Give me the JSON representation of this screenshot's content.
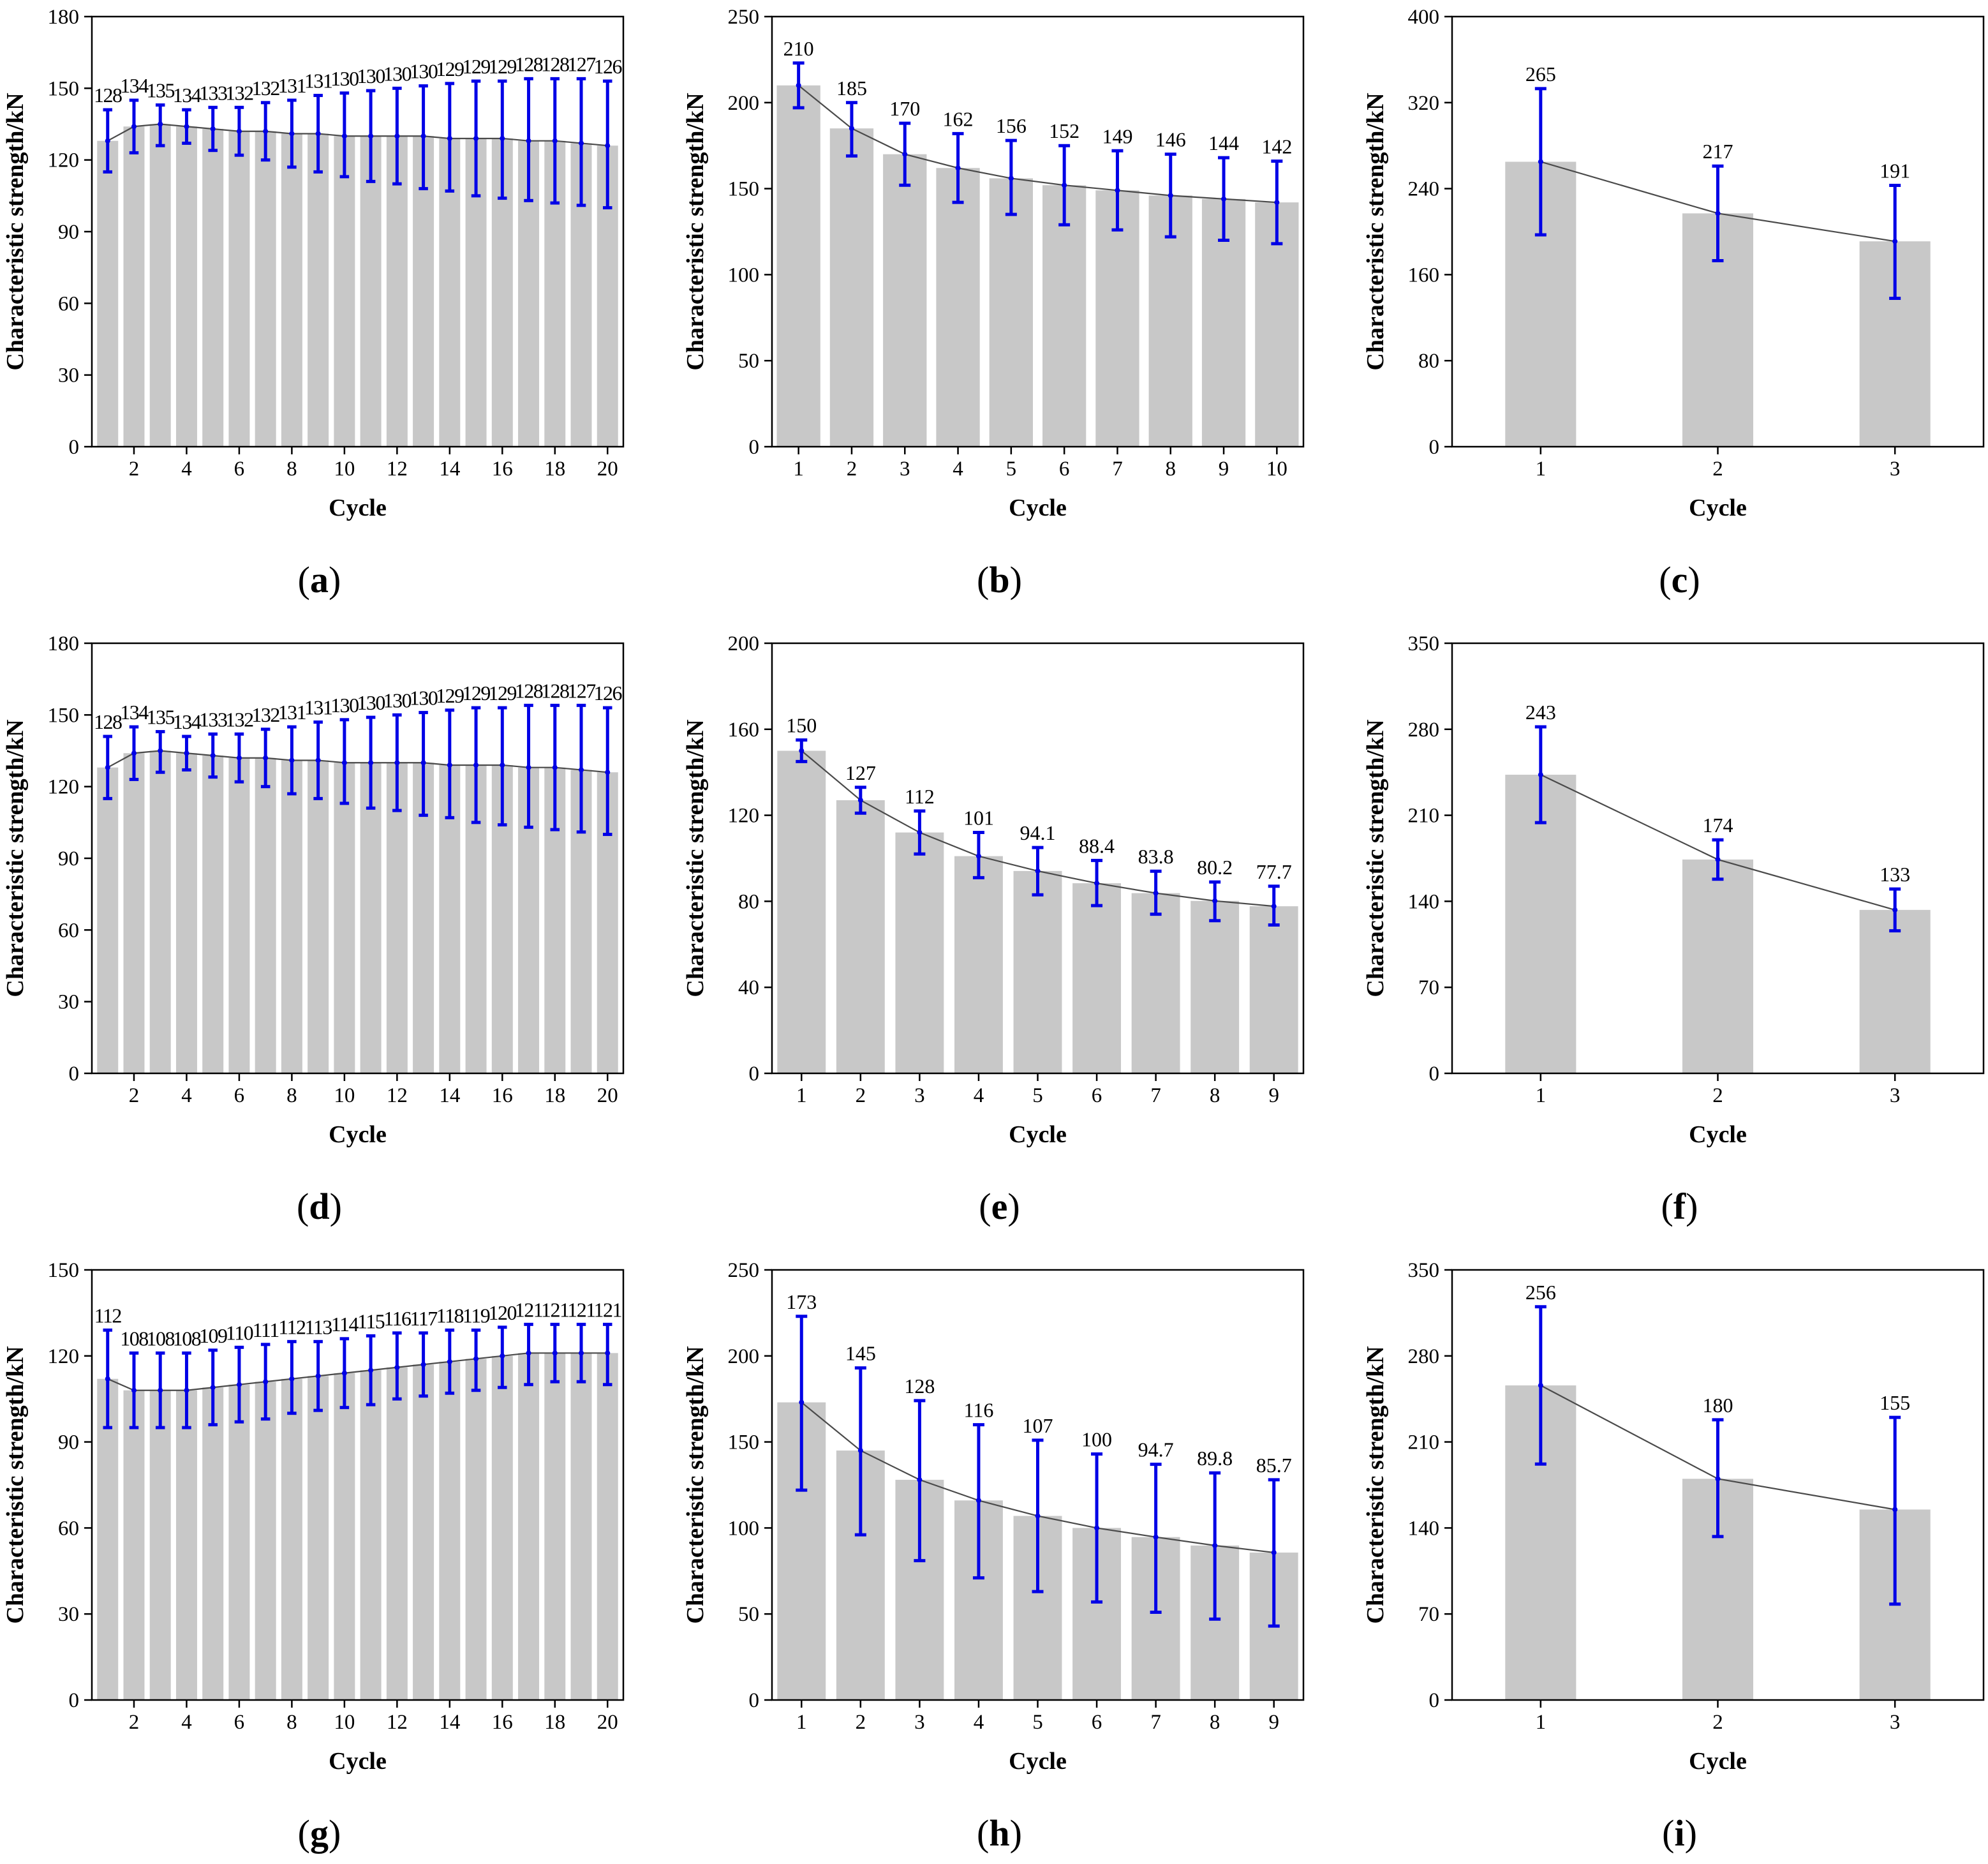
{
  "figure": {
    "colors": {
      "bar": "#c8c8c8",
      "errorbar": "#0000e6",
      "line": "#4a4a4a",
      "axis": "#000000"
    }
  },
  "chart_data": [
    {
      "id": "a",
      "panel_label": "a",
      "type": "bar",
      "xlabel": "Cycle",
      "ylabel": "Characteristic strength/kN",
      "ylim": [
        0,
        180
      ],
      "yticks": [
        0,
        30,
        60,
        90,
        120,
        150,
        180
      ],
      "xlim": [
        0.4,
        20.6
      ],
      "xticks": [
        2,
        4,
        6,
        8,
        10,
        12,
        14,
        16,
        18,
        20
      ],
      "bar_width": 0.8,
      "trend_line": true,
      "x": [
        1,
        2,
        3,
        4,
        5,
        6,
        7,
        8,
        9,
        10,
        11,
        12,
        13,
        14,
        15,
        16,
        17,
        18,
        19,
        20
      ],
      "values": [
        128,
        134,
        135,
        134,
        133,
        132,
        132,
        131,
        131,
        130,
        130,
        130,
        130,
        129,
        129,
        129,
        128,
        128,
        127,
        126
      ],
      "labels": [
        "128",
        "134",
        "135",
        "134",
        "133",
        "132",
        "132",
        "131",
        "131",
        "130",
        "130",
        "130",
        "130",
        "129",
        "129",
        "129",
        "128",
        "128",
        "127",
        "126"
      ],
      "err_low": [
        115,
        123,
        126,
        127,
        124,
        122,
        120,
        117,
        115,
        113,
        111,
        110,
        108,
        107,
        105,
        104,
        103,
        102,
        101,
        100
      ],
      "err_high": [
        141,
        145,
        143,
        141,
        142,
        142,
        144,
        145,
        147,
        148,
        149,
        150,
        151,
        152,
        153,
        153,
        154,
        154,
        154,
        153
      ]
    },
    {
      "id": "b",
      "panel_label": "b",
      "type": "bar",
      "xlabel": "Cycle",
      "ylabel": "Characteristic strength/kN",
      "ylim": [
        0,
        250
      ],
      "yticks": [
        0,
        50,
        100,
        150,
        200,
        250
      ],
      "xlim": [
        0.5,
        10.5
      ],
      "xticks": [
        1,
        2,
        3,
        4,
        5,
        6,
        7,
        8,
        9,
        10
      ],
      "bar_width": 0.82,
      "trend_line": true,
      "x": [
        1,
        2,
        3,
        4,
        5,
        6,
        7,
        8,
        9,
        10
      ],
      "values": [
        210,
        185,
        170,
        162,
        156,
        152,
        149,
        146,
        144,
        142
      ],
      "labels": [
        "210",
        "185",
        "170",
        "162",
        "156",
        "152",
        "149",
        "146",
        "144",
        "142"
      ],
      "err_low": [
        197,
        169,
        152,
        142,
        135,
        129,
        126,
        122,
        120,
        118
      ],
      "err_high": [
        223,
        200,
        188,
        182,
        178,
        175,
        172,
        170,
        168,
        166
      ]
    },
    {
      "id": "c",
      "panel_label": "c",
      "type": "bar",
      "xlabel": "Cycle",
      "ylabel": "Characteristic strength/kN",
      "ylim": [
        0,
        400
      ],
      "yticks": [
        0,
        80,
        160,
        240,
        320,
        400
      ],
      "xlim": [
        0.5,
        3.5
      ],
      "xticks": [
        1,
        2,
        3
      ],
      "bar_width": 0.4,
      "trend_line": true,
      "x": [
        1,
        2,
        3
      ],
      "values": [
        265,
        217,
        191
      ],
      "labels": [
        "265",
        "217",
        "191"
      ],
      "err_low": [
        197,
        173,
        138
      ],
      "err_high": [
        333,
        261,
        243
      ]
    },
    {
      "id": "d",
      "panel_label": "d",
      "type": "bar",
      "xlabel": "Cycle",
      "ylabel": "Characteristic strength/kN",
      "ylim": [
        0,
        180
      ],
      "yticks": [
        0,
        30,
        60,
        90,
        120,
        150,
        180
      ],
      "xlim": [
        0.4,
        20.6
      ],
      "xticks": [
        2,
        4,
        6,
        8,
        10,
        12,
        14,
        16,
        18,
        20
      ],
      "bar_width": 0.8,
      "trend_line": true,
      "x": [
        1,
        2,
        3,
        4,
        5,
        6,
        7,
        8,
        9,
        10,
        11,
        12,
        13,
        14,
        15,
        16,
        17,
        18,
        19,
        20
      ],
      "values": [
        128,
        134,
        135,
        134,
        133,
        132,
        132,
        131,
        131,
        130,
        130,
        130,
        130,
        129,
        129,
        129,
        128,
        128,
        127,
        126
      ],
      "labels": [
        "128",
        "134",
        "135",
        "134",
        "133",
        "132",
        "132",
        "131",
        "131",
        "130",
        "130",
        "130",
        "130",
        "129",
        "129",
        "129",
        "128",
        "128",
        "127",
        "126"
      ],
      "err_low": [
        115,
        123,
        126,
        127,
        124,
        122,
        120,
        117,
        115,
        113,
        111,
        110,
        108,
        107,
        105,
        104,
        103,
        102,
        101,
        100
      ],
      "err_high": [
        141,
        145,
        143,
        141,
        142,
        142,
        144,
        145,
        147,
        148,
        149,
        150,
        151,
        152,
        153,
        153,
        154,
        154,
        154,
        153
      ]
    },
    {
      "id": "e",
      "panel_label": "e",
      "type": "bar",
      "xlabel": "Cycle",
      "ylabel": "Characteristic strength/kN",
      "ylim": [
        0,
        200
      ],
      "yticks": [
        0,
        40,
        80,
        120,
        160,
        200
      ],
      "xlim": [
        0.5,
        9.5
      ],
      "xticks": [
        1,
        2,
        3,
        4,
        5,
        6,
        7,
        8,
        9
      ],
      "bar_width": 0.82,
      "trend_line": true,
      "x": [
        1,
        2,
        3,
        4,
        5,
        6,
        7,
        8,
        9
      ],
      "values": [
        150,
        127,
        112,
        101,
        94.1,
        88.4,
        83.8,
        80.2,
        77.7
      ],
      "labels": [
        "150",
        "127",
        "112",
        "101",
        "94.1",
        "88.4",
        "83.8",
        "80.2",
        "77.7"
      ],
      "err_low": [
        145,
        121,
        102,
        91,
        83,
        78,
        74,
        71,
        69
      ],
      "err_high": [
        155,
        133,
        122,
        112,
        105,
        99,
        94,
        89,
        87
      ]
    },
    {
      "id": "f",
      "panel_label": "f",
      "type": "bar",
      "xlabel": "Cycle",
      "ylabel": "Characteristic strength/kN",
      "ylim": [
        0,
        350
      ],
      "yticks": [
        0,
        70,
        140,
        210,
        280,
        350
      ],
      "xlim": [
        0.5,
        3.5
      ],
      "xticks": [
        1,
        2,
        3
      ],
      "bar_width": 0.4,
      "trend_line": true,
      "x": [
        1,
        2,
        3
      ],
      "values": [
        243,
        174,
        133
      ],
      "labels": [
        "243",
        "174",
        "133"
      ],
      "err_low": [
        204,
        158,
        116
      ],
      "err_high": [
        282,
        190,
        150
      ]
    },
    {
      "id": "g",
      "panel_label": "g",
      "type": "bar",
      "xlabel": "Cycle",
      "ylabel": "Characteristic strength/kN",
      "ylim": [
        0,
        150
      ],
      "yticks": [
        0,
        30,
        60,
        90,
        120,
        150
      ],
      "xlim": [
        0.4,
        20.6
      ],
      "xticks": [
        2,
        4,
        6,
        8,
        10,
        12,
        14,
        16,
        18,
        20
      ],
      "bar_width": 0.8,
      "trend_line": true,
      "x": [
        1,
        2,
        3,
        4,
        5,
        6,
        7,
        8,
        9,
        10,
        11,
        12,
        13,
        14,
        15,
        16,
        17,
        18,
        19,
        20
      ],
      "values": [
        112,
        108,
        108,
        108,
        109,
        110,
        111,
        112,
        113,
        114,
        115,
        116,
        117,
        118,
        119,
        120,
        121,
        121,
        121,
        121
      ],
      "labels": [
        "112",
        "108",
        "108",
        "108",
        "109",
        "110",
        "111",
        "112",
        "113",
        "114",
        "115",
        "116",
        "117",
        "118",
        "119",
        "120",
        "121",
        "121",
        "121",
        "121"
      ],
      "err_low": [
        95,
        95,
        95,
        95,
        96,
        97,
        98,
        100,
        101,
        102,
        103,
        105,
        106,
        107,
        108,
        109,
        110,
        111,
        111,
        110
      ],
      "err_high": [
        129,
        121,
        121,
        121,
        122,
        123,
        124,
        125,
        125,
        126,
        127,
        128,
        128,
        129,
        129,
        130,
        131,
        131,
        131,
        131
      ]
    },
    {
      "id": "h",
      "panel_label": "h",
      "type": "bar",
      "xlabel": "Cycle",
      "ylabel": "Characteristic strength/kN",
      "ylim": [
        0,
        250
      ],
      "yticks": [
        0,
        50,
        100,
        150,
        200,
        250
      ],
      "xlim": [
        0.5,
        9.5
      ],
      "xticks": [
        1,
        2,
        3,
        4,
        5,
        6,
        7,
        8,
        9
      ],
      "bar_width": 0.82,
      "trend_line": true,
      "x": [
        1,
        2,
        3,
        4,
        5,
        6,
        7,
        8,
        9
      ],
      "values": [
        173,
        145,
        128,
        116,
        107,
        100,
        94.7,
        89.8,
        85.7
      ],
      "labels": [
        "173",
        "145",
        "128",
        "116",
        "107",
        "100",
        "94.7",
        "89.8",
        "85.7"
      ],
      "err_low": [
        122,
        96,
        81,
        71,
        63,
        57,
        51,
        47,
        43
      ],
      "err_high": [
        223,
        193,
        174,
        160,
        151,
        143,
        137,
        132,
        128
      ]
    },
    {
      "id": "i",
      "panel_label": "i",
      "type": "bar",
      "xlabel": "Cycle",
      "ylabel": "Characteristic strength/kN",
      "ylim": [
        0,
        350
      ],
      "yticks": [
        0,
        70,
        140,
        210,
        280,
        350
      ],
      "xlim": [
        0.5,
        3.5
      ],
      "xticks": [
        1,
        2,
        3
      ],
      "bar_width": 0.4,
      "trend_line": true,
      "x": [
        1,
        2,
        3
      ],
      "values": [
        256,
        180,
        155
      ],
      "labels": [
        "256",
        "180",
        "155"
      ],
      "err_low": [
        192,
        133,
        78
      ],
      "err_high": [
        320,
        228,
        230
      ]
    }
  ]
}
